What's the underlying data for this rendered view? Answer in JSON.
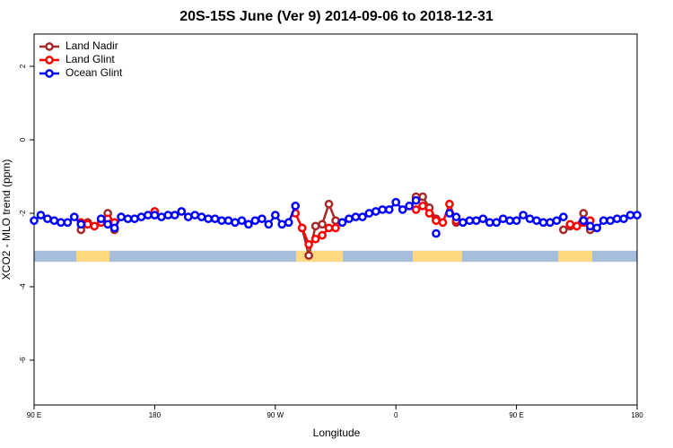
{
  "chart_data": {
    "type": "line",
    "title": "20S-15S June (Ver 9)   2014-09-06 to 2018-12-31",
    "x_label": "Longitude",
    "y_label": "XCO2 - MLO trend (ppm)",
    "xlim": [
      90,
      540
    ],
    "ylim": [
      -7.22,
      2.88
    ],
    "xticks": [
      {
        "value": 90,
        "label": "90 E"
      },
      {
        "value": 180,
        "label": "180"
      },
      {
        "value": 270,
        "label": "90 W"
      },
      {
        "value": 360,
        "label": "0"
      },
      {
        "value": 450,
        "label": "90 E"
      },
      {
        "value": 540,
        "label": "180"
      }
    ],
    "yticks": [
      -6,
      -4,
      -2,
      0,
      2
    ],
    "legend": "top-left",
    "band": [
      -3.32,
      -3.02
    ],
    "ocean_color": "#a7bddc",
    "land_color": "#ffd97f",
    "land_segments": [
      [
        121.5,
        146.3
      ],
      [
        285.5,
        320.4
      ],
      [
        372.6,
        409.4
      ],
      [
        481.1,
        506.5
      ]
    ],
    "x": [
      90,
      95,
      100,
      105,
      110,
      115,
      120,
      125,
      130,
      135,
      140,
      145,
      150,
      155,
      160,
      165,
      170,
      175,
      180,
      185,
      190,
      195,
      200,
      205,
      210,
      215,
      220,
      225,
      230,
      235,
      240,
      245,
      250,
      255,
      260,
      265,
      270,
      275,
      280,
      285,
      290,
      295,
      300,
      305,
      310,
      315,
      320,
      325,
      330,
      335,
      340,
      345,
      350,
      355,
      360,
      365,
      370,
      375,
      380,
      385,
      390,
      395,
      400,
      405,
      410,
      415,
      420,
      425,
      430,
      435,
      440,
      445,
      450,
      455,
      460,
      465,
      470,
      475,
      480,
      485,
      490,
      495,
      500,
      505,
      510,
      515,
      520,
      525,
      530,
      535,
      540
    ],
    "series": [
      {
        "name": "Land Nadir",
        "color": "#a52a2a",
        "values": [
          null,
          null,
          null,
          null,
          null,
          null,
          null,
          -2.45,
          -2.25,
          null,
          null,
          -2.0,
          -2.45,
          null,
          null,
          null,
          null,
          null,
          null,
          null,
          null,
          null,
          null,
          null,
          null,
          null,
          null,
          null,
          null,
          null,
          null,
          null,
          null,
          null,
          null,
          null,
          null,
          null,
          null,
          null,
          -2.4,
          -3.15,
          -2.35,
          -2.3,
          -1.75,
          -2.2,
          null,
          null,
          null,
          null,
          null,
          null,
          null,
          null,
          null,
          null,
          null,
          -1.55,
          -1.55,
          -1.85,
          -2.15,
          null,
          null,
          -2.25,
          null,
          null,
          null,
          null,
          null,
          null,
          null,
          null,
          null,
          null,
          null,
          null,
          null,
          null,
          null,
          -2.45,
          -2.35,
          -2.35,
          -2.0,
          -2.45,
          null,
          null,
          null,
          null,
          null,
          null,
          null
        ]
      },
      {
        "name": "Land Glint",
        "color": "#ff0000",
        "values": [
          null,
          null,
          null,
          null,
          null,
          null,
          null,
          -2.25,
          -2.3,
          -2.35,
          -2.25,
          -2.15,
          -2.25,
          null,
          null,
          null,
          null,
          null,
          -1.95,
          null,
          null,
          null,
          null,
          null,
          null,
          null,
          null,
          null,
          null,
          null,
          null,
          null,
          null,
          null,
          null,
          null,
          null,
          null,
          null,
          -2.0,
          -2.4,
          -2.85,
          -2.7,
          -2.6,
          -2.4,
          -2.4,
          null,
          null,
          null,
          null,
          null,
          null,
          null,
          null,
          null,
          null,
          null,
          -1.9,
          -1.8,
          -2.0,
          -2.2,
          -2.25,
          -1.75,
          -2.2,
          null,
          null,
          null,
          null,
          null,
          null,
          null,
          null,
          null,
          null,
          null,
          null,
          null,
          null,
          null,
          null,
          -2.3,
          -2.35,
          -2.25,
          -2.2,
          null,
          null,
          null,
          null,
          null,
          null,
          null
        ]
      },
      {
        "name": "Ocean Glint",
        "color": "#0000ff",
        "values": [
          -2.2,
          -2.05,
          -2.15,
          -2.2,
          -2.25,
          -2.25,
          -2.1,
          -2.3,
          null,
          null,
          -2.15,
          -2.3,
          -2.4,
          -2.1,
          -2.15,
          -2.15,
          -2.1,
          -2.05,
          -2.05,
          -2.1,
          -2.05,
          -2.05,
          -1.95,
          -2.1,
          -2.05,
          -2.1,
          -2.15,
          -2.15,
          -2.2,
          -2.2,
          -2.25,
          -2.2,
          -2.3,
          -2.2,
          -2.15,
          -2.3,
          -2.05,
          -2.3,
          -2.25,
          -1.8,
          null,
          null,
          null,
          null,
          null,
          null,
          -2.25,
          -2.15,
          -2.1,
          -2.1,
          -2.0,
          -1.95,
          -1.9,
          -1.9,
          -1.7,
          -1.9,
          -1.8,
          -1.65,
          null,
          null,
          -2.55,
          null,
          -2.0,
          -2.1,
          -2.25,
          -2.2,
          -2.2,
          -2.15,
          -2.25,
          -2.25,
          -2.15,
          -2.2,
          -2.2,
          -2.05,
          -2.15,
          -2.2,
          -2.25,
          -2.25,
          -2.2,
          -2.1,
          null,
          null,
          -2.2,
          -2.35,
          -2.4,
          -2.2,
          -2.2,
          -2.15,
          -2.15,
          -2.05,
          -2.05
        ]
      }
    ]
  }
}
